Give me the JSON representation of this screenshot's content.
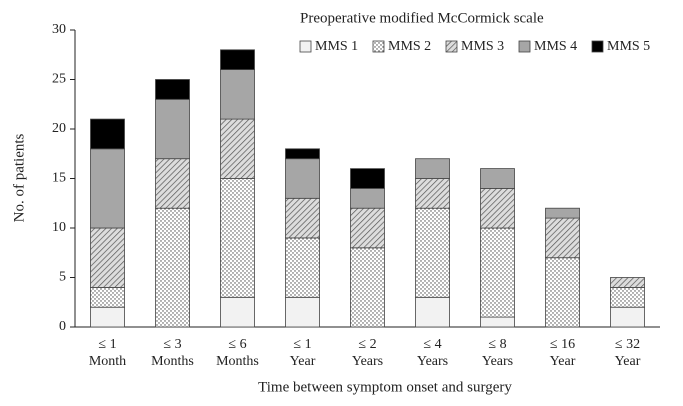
{
  "chart_data": {
    "type": "stacked_bar",
    "x_label": "Time between symptom onset and surgery",
    "y_label": "No. of patients",
    "legend_title": "Preoperative modified McCormick scale",
    "categories": [
      [
        "≤ 1",
        "Month"
      ],
      [
        "≤ 3",
        "Months"
      ],
      [
        "≤ 6",
        "Months"
      ],
      [
        "≤ 1",
        "Year"
      ],
      [
        "≤ 2",
        "Years"
      ],
      [
        "≤ 4",
        "Years"
      ],
      [
        "≤ 8",
        "Years"
      ],
      [
        "≤ 16",
        "Year"
      ],
      [
        "≤ 32",
        "Year"
      ]
    ],
    "series": [
      {
        "name": "MMS 1",
        "color": "#f2f2f2",
        "pattern": "solid",
        "values": [
          2,
          0,
          3,
          3,
          0,
          3,
          1,
          0,
          2
        ]
      },
      {
        "name": "MMS 2",
        "color": "#ffffff",
        "pattern": "dots",
        "values": [
          2,
          12,
          12,
          6,
          8,
          9,
          9,
          7,
          2
        ]
      },
      {
        "name": "MMS 3",
        "color": "#d9d9d9",
        "pattern": "hatch",
        "values": [
          6,
          5,
          6,
          4,
          4,
          3,
          4,
          4,
          1
        ]
      },
      {
        "name": "MMS 4",
        "color": "#a6a6a6",
        "pattern": "solid",
        "values": [
          8,
          6,
          5,
          4,
          2,
          2,
          2,
          1,
          0
        ]
      },
      {
        "name": "MMS 5",
        "color": "#000000",
        "pattern": "solid",
        "values": [
          3,
          2,
          2,
          1,
          2,
          0,
          0,
          0,
          0
        ]
      }
    ],
    "ylim": [
      0,
      30
    ],
    "yticks": [
      0,
      5,
      10,
      15,
      20,
      25,
      30
    ],
    "grid": false
  }
}
